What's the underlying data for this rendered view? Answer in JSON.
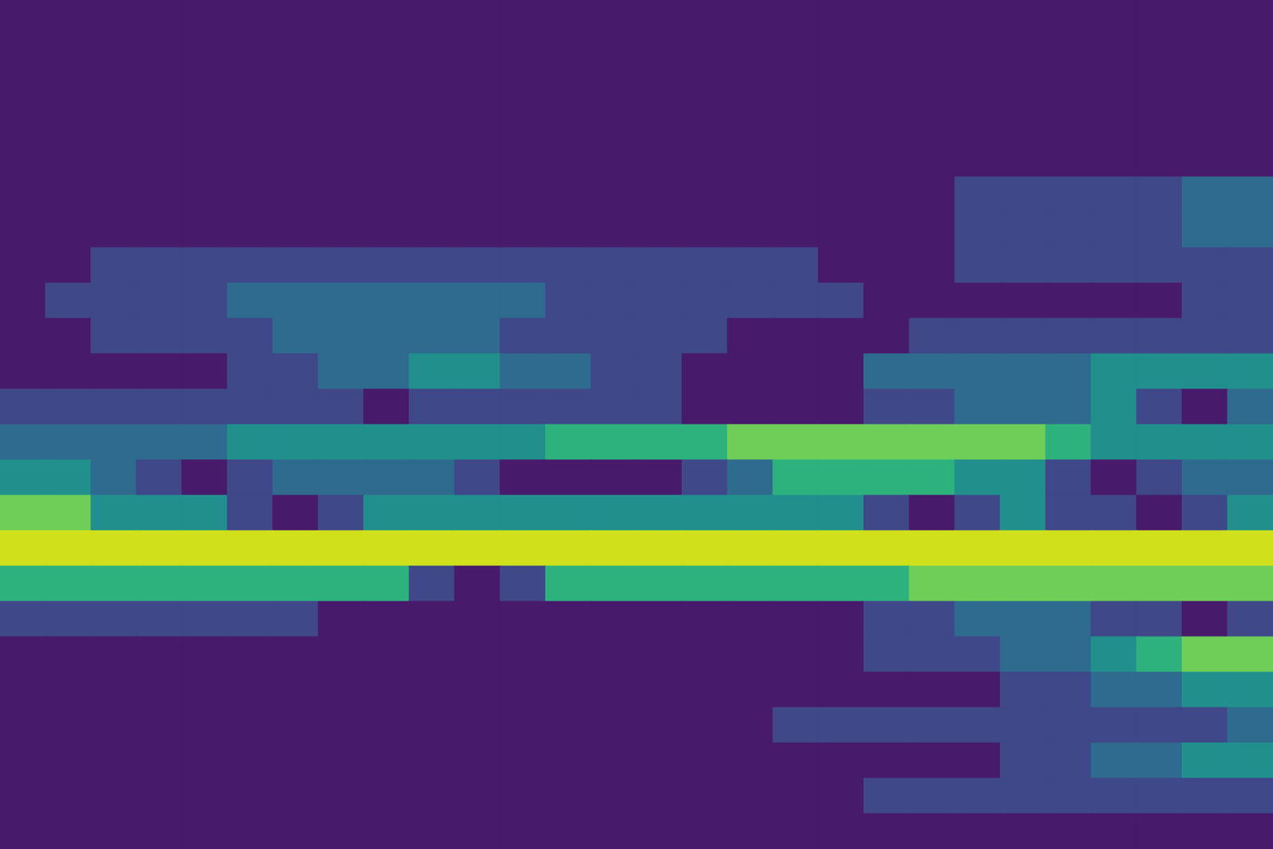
{
  "chart_data": {
    "type": "contour",
    "tick_labels": false,
    "xlim": [
      0,
      28
    ],
    "ylim": [
      0,
      24
    ],
    "zlim": [
      0,
      6
    ],
    "x": [
      0.5,
      1.5,
      2.5,
      3.5,
      4.5,
      5.5,
      6.5,
      7.5,
      8.5,
      9.5,
      10.5,
      11.5,
      12.5,
      13.5,
      14.5,
      15.5,
      16.5,
      17.5,
      18.5,
      19.5,
      20.5,
      21.5,
      22.5,
      23.5,
      24.5,
      25.5,
      26.5,
      27.5
    ],
    "y": [
      23.5,
      22.5,
      21.5,
      20.5,
      19.5,
      18.5,
      17.5,
      16.5,
      15.5,
      14.5,
      13.5,
      12.5,
      11.5,
      10.5,
      9.5,
      8.5,
      7.5,
      6.5,
      5.5,
      4.5,
      3.5,
      2.5,
      1.5,
      0.5
    ],
    "cells": [
      [
        0,
        0,
        0,
        0,
        0,
        0,
        0,
        0,
        0,
        0,
        0,
        0,
        0,
        0,
        0,
        0,
        0,
        0,
        0,
        0,
        0,
        0,
        0,
        0,
        0,
        0,
        0,
        0
      ],
      [
        0,
        0,
        0,
        0,
        0,
        0,
        0,
        0,
        0,
        0,
        0,
        0,
        0,
        0,
        0,
        0,
        0,
        0,
        0,
        0,
        0,
        0,
        0,
        0,
        0,
        0,
        0,
        0
      ],
      [
        0,
        0,
        0,
        0,
        0,
        0,
        0,
        0,
        0,
        0,
        0,
        0,
        0,
        0,
        0,
        0,
        0,
        0,
        0,
        0,
        0,
        0,
        0,
        0,
        0,
        0,
        0,
        0
      ],
      [
        0,
        0,
        0,
        0,
        0,
        0,
        0,
        0,
        0,
        0,
        0,
        0,
        0,
        0,
        0,
        0,
        0,
        0,
        0,
        0,
        0,
        0,
        0,
        0,
        0,
        0,
        0,
        0
      ],
      [
        0,
        0,
        0,
        0,
        0,
        0,
        0,
        0,
        0,
        0,
        0,
        0,
        0,
        0,
        0,
        0,
        0,
        0,
        0,
        0,
        0,
        0,
        0,
        0,
        0,
        0,
        0,
        0
      ],
      [
        0,
        0,
        0,
        0,
        0,
        0,
        0,
        0,
        0,
        0,
        0,
        0,
        0,
        0,
        0,
        0,
        0,
        0,
        0,
        0,
        0,
        1,
        1,
        1,
        1,
        1,
        2,
        2
      ],
      [
        0,
        0,
        0,
        0,
        0,
        0,
        0,
        0,
        0,
        0,
        0,
        0,
        0,
        0,
        0,
        0,
        0,
        0,
        0,
        0,
        0,
        1,
        1,
        1,
        1,
        1,
        2,
        2
      ],
      [
        0,
        0,
        1,
        1,
        1,
        1,
        1,
        1,
        1,
        1,
        1,
        1,
        1,
        1,
        1,
        1,
        1,
        1,
        0,
        0,
        0,
        1,
        1,
        1,
        1,
        1,
        1,
        1
      ],
      [
        0,
        1,
        1,
        1,
        1,
        2,
        2,
        2,
        2,
        2,
        2,
        2,
        1,
        1,
        1,
        1,
        1,
        1,
        1,
        0,
        0,
        0,
        0,
        0,
        0,
        0,
        1,
        1
      ],
      [
        0,
        0,
        1,
        1,
        1,
        1,
        2,
        2,
        2,
        2,
        2,
        1,
        1,
        1,
        1,
        1,
        0,
        0,
        0,
        0,
        1,
        1,
        1,
        1,
        1,
        1,
        1,
        1
      ],
      [
        0,
        0,
        0,
        0,
        0,
        1,
        1,
        2,
        2,
        3,
        3,
        2,
        2,
        1,
        1,
        0,
        0,
        0,
        0,
        2,
        2,
        2,
        2,
        2,
        3,
        3,
        3,
        3
      ],
      [
        1,
        1,
        1,
        1,
        1,
        1,
        1,
        1,
        0,
        1,
        1,
        1,
        1,
        1,
        1,
        0,
        0,
        0,
        0,
        1,
        1,
        2,
        2,
        2,
        3,
        1,
        0,
        2
      ],
      [
        2,
        2,
        2,
        2,
        2,
        3,
        3,
        3,
        3,
        3,
        3,
        3,
        4,
        4,
        4,
        4,
        5,
        5,
        5,
        5,
        5,
        5,
        5,
        4,
        3,
        3,
        3,
        3
      ],
      [
        3,
        3,
        2,
        1,
        0,
        1,
        2,
        2,
        2,
        2,
        1,
        0,
        0,
        0,
        0,
        1,
        2,
        4,
        4,
        4,
        4,
        3,
        3,
        1,
        0,
        1,
        2,
        2
      ],
      [
        5,
        5,
        3,
        3,
        3,
        1,
        0,
        1,
        3,
        3,
        3,
        3,
        3,
        3,
        3,
        3,
        3,
        3,
        3,
        1,
        0,
        1,
        3,
        1,
        1,
        0,
        1,
        3
      ],
      [
        6,
        6,
        6,
        6,
        6,
        6,
        6,
        6,
        6,
        6,
        6,
        6,
        6,
        6,
        6,
        6,
        6,
        6,
        6,
        6,
        6,
        6,
        6,
        6,
        6,
        6,
        6,
        6
      ],
      [
        4,
        4,
        4,
        4,
        4,
        4,
        4,
        4,
        4,
        1,
        0,
        1,
        4,
        4,
        4,
        4,
        4,
        4,
        4,
        4,
        5,
        5,
        5,
        5,
        5,
        5,
        5,
        5
      ],
      [
        1,
        1,
        1,
        1,
        1,
        1,
        1,
        0,
        0,
        0,
        0,
        0,
        0,
        0,
        0,
        0,
        0,
        0,
        0,
        1,
        1,
        2,
        2,
        2,
        1,
        1,
        0,
        1
      ],
      [
        0,
        0,
        0,
        0,
        0,
        0,
        0,
        0,
        0,
        0,
        0,
        0,
        0,
        0,
        0,
        0,
        0,
        0,
        0,
        1,
        1,
        1,
        2,
        2,
        3,
        4,
        5,
        5
      ],
      [
        0,
        0,
        0,
        0,
        0,
        0,
        0,
        0,
        0,
        0,
        0,
        0,
        0,
        0,
        0,
        0,
        0,
        0,
        0,
        0,
        0,
        0,
        1,
        1,
        2,
        2,
        3,
        3
      ],
      [
        0,
        0,
        0,
        0,
        0,
        0,
        0,
        0,
        0,
        0,
        0,
        0,
        0,
        0,
        0,
        0,
        0,
        1,
        1,
        1,
        1,
        1,
        1,
        1,
        1,
        1,
        1,
        2
      ],
      [
        0,
        0,
        0,
        0,
        0,
        0,
        0,
        0,
        0,
        0,
        0,
        0,
        0,
        0,
        0,
        0,
        0,
        0,
        0,
        0,
        0,
        0,
        1,
        1,
        2,
        2,
        3,
        3
      ],
      [
        0,
        0,
        0,
        0,
        0,
        0,
        0,
        0,
        0,
        0,
        0,
        0,
        0,
        0,
        0,
        0,
        0,
        0,
        0,
        1,
        1,
        1,
        1,
        1,
        1,
        1,
        1,
        1
      ],
      [
        0,
        0,
        0,
        0,
        0,
        0,
        0,
        0,
        0,
        0,
        0,
        0,
        0,
        0,
        0,
        0,
        0,
        0,
        0,
        0,
        0,
        0,
        0,
        0,
        0,
        0,
        0,
        0
      ]
    ]
  }
}
